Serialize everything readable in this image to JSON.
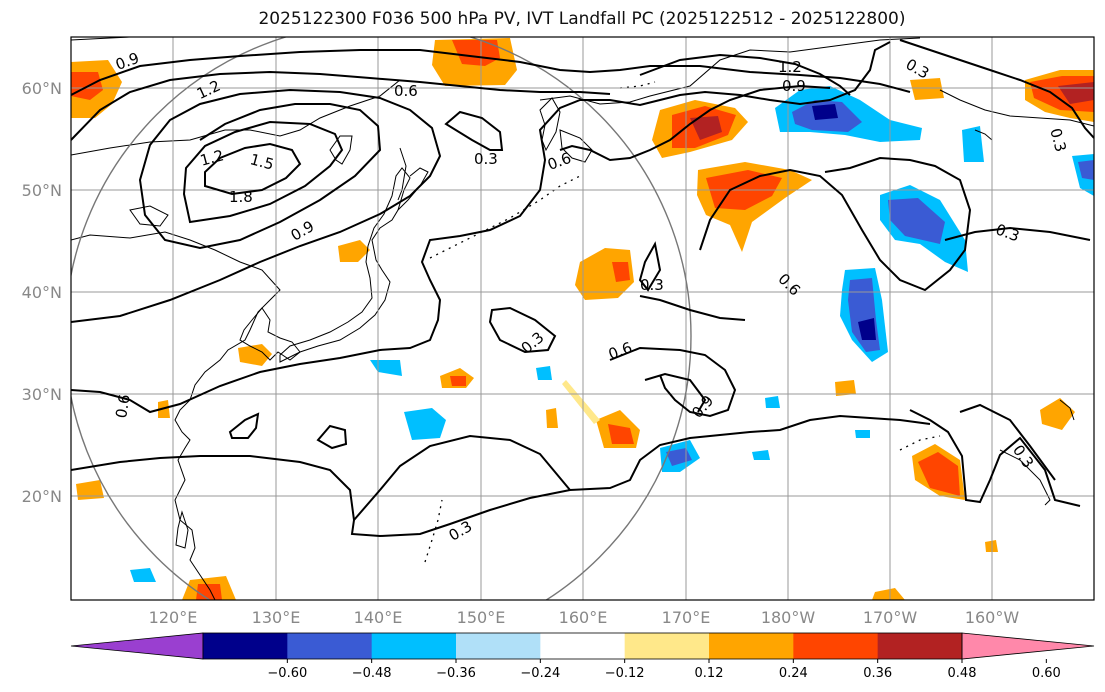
{
  "title": "2025122300 F036 500 hPa PV, IVT Landfall PC (2025122512 - 2025122800)",
  "lon_ticks": [
    "120°E",
    "130°E",
    "140°E",
    "150°E",
    "160°E",
    "170°E",
    "180°W",
    "170°W",
    "160°W"
  ],
  "lat_ticks": [
    "60°N",
    "50°N",
    "40°N",
    "30°N",
    "20°N"
  ],
  "contour_labels": [
    "0.9",
    "1.2",
    "1.2",
    "1.5",
    "1.8",
    "0.9",
    "0.6",
    "0.3",
    "0.6",
    "1.2",
    "0.9",
    "0.3",
    "0.3",
    "0.6",
    "0.3",
    "0.6",
    "0.9",
    "0.3",
    "0.3",
    "0.3",
    "0.6",
    "0.3"
  ],
  "colorbar": {
    "ticks": [
      "−0.60",
      "−0.48",
      "−0.36",
      "−0.24",
      "−0.12",
      "0.12",
      "0.24",
      "0.36",
      "0.48",
      "0.60"
    ],
    "colors": [
      "#9a3fd0",
      "#00008b",
      "#3a5bd4",
      "#00bfff",
      "#b0e0f8",
      "#ffffff",
      "#ffe88a",
      "#ffa500",
      "#ff4500",
      "#b22222",
      "#ff88aa"
    ]
  }
}
